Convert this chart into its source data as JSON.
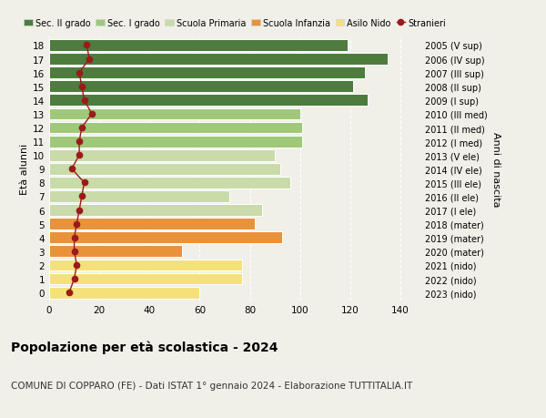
{
  "ages": [
    0,
    1,
    2,
    3,
    4,
    5,
    6,
    7,
    8,
    9,
    10,
    11,
    12,
    13,
    14,
    15,
    16,
    17,
    18
  ],
  "bar_values": [
    60,
    77,
    77,
    53,
    93,
    82,
    85,
    72,
    96,
    92,
    90,
    101,
    101,
    100,
    127,
    121,
    126,
    135,
    119
  ],
  "stranieri": [
    8,
    10,
    11,
    10,
    10,
    11,
    12,
    13,
    14,
    9,
    12,
    12,
    13,
    17,
    14,
    13,
    12,
    16,
    15
  ],
  "right_labels": [
    "2023 (nido)",
    "2022 (nido)",
    "2021 (nido)",
    "2020 (mater)",
    "2019 (mater)",
    "2018 (mater)",
    "2017 (I ele)",
    "2016 (II ele)",
    "2015 (III ele)",
    "2014 (IV ele)",
    "2013 (V ele)",
    "2012 (I med)",
    "2011 (II med)",
    "2010 (III med)",
    "2009 (I sup)",
    "2008 (II sup)",
    "2007 (III sup)",
    "2006 (IV sup)",
    "2005 (V sup)"
  ],
  "bar_colors": [
    "#f5e17a",
    "#f5e17a",
    "#f5e17a",
    "#e8923a",
    "#e8923a",
    "#e8923a",
    "#c8dba8",
    "#c8dba8",
    "#c8dba8",
    "#c8dba8",
    "#c8dba8",
    "#9fc878",
    "#9fc878",
    "#9fc878",
    "#4d7c3e",
    "#4d7c3e",
    "#4d7c3e",
    "#4d7c3e",
    "#4d7c3e"
  ],
  "legend_labels": [
    "Sec. II grado",
    "Sec. I grado",
    "Scuola Primaria",
    "Scuola Infanzia",
    "Asilo Nido",
    "Stranieri"
  ],
  "legend_colors": [
    "#4d7c3e",
    "#9fc878",
    "#c8dba8",
    "#e8923a",
    "#f5e17a",
    "#b22222"
  ],
  "ylabel_left": "Età alunni",
  "ylabel_right": "Anni di nascita",
  "xlim": [
    0,
    148
  ],
  "xticks": [
    0,
    20,
    40,
    60,
    80,
    100,
    120,
    140
  ],
  "title": "Popolazione per età scolastica - 2024",
  "subtitle": "COMUNE DI COPPARO (FE) - Dati ISTAT 1° gennaio 2024 - Elaborazione TUTTITALIA.IT",
  "background_color": "#f0f0e8",
  "bar_edge_color": "white",
  "stranieri_line_color": "#9b1a1a",
  "stranieri_marker_color": "#9b1a1a",
  "grid_color": "#ffffff",
  "title_fontsize": 10,
  "subtitle_fontsize": 7.5,
  "tick_fontsize": 7.5,
  "legend_fontsize": 7,
  "ylabel_fontsize": 8
}
